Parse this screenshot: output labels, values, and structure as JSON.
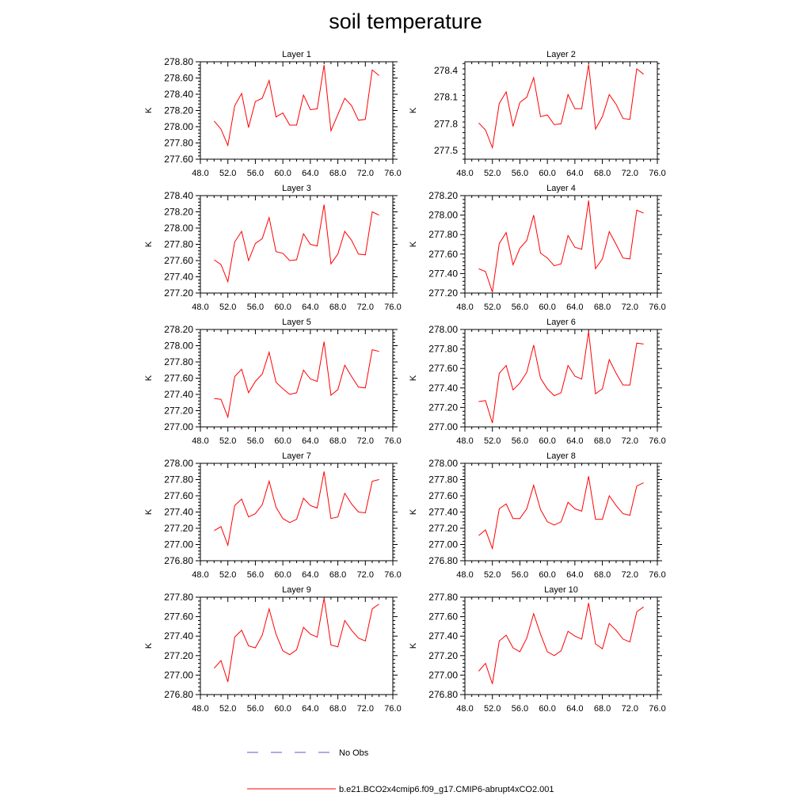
{
  "title": "soil temperature",
  "colors": {
    "model_line": "#ff0000",
    "obs_line": "#5a5ad2",
    "axis": "#000000"
  },
  "legend": [
    {
      "label": "No Obs",
      "style": "dashed",
      "color": "#5a5ad2"
    },
    {
      "label": "b.e21.BCO2x4cmip6.f09_g17.CMIP6-abrupt4xCO2.001",
      "style": "solid",
      "color": "#ff0000"
    }
  ],
  "chart_data": [
    {
      "type": "line",
      "title": "Layer 1",
      "xlabel": "",
      "ylabel": "K",
      "xlim": [
        48,
        76
      ],
      "ylim": [
        277.6,
        278.8
      ],
      "xticks": [
        "48.0",
        "52.0",
        "56.0",
        "60.0",
        "64.0",
        "68.0",
        "72.0",
        "76.0"
      ],
      "yticks": [
        "277.60",
        "277.80",
        "278.00",
        "278.20",
        "278.40",
        "278.60",
        "278.80"
      ],
      "x": [
        50,
        51,
        52,
        53,
        54,
        55,
        56,
        57,
        58,
        59,
        60,
        61,
        62,
        63,
        64,
        65,
        66,
        67,
        68,
        69,
        70,
        71,
        72,
        73,
        74
      ],
      "series": [
        {
          "name": "b.e21.BCO2x4cmip6.f09_g17.CMIP6-abrupt4xCO2.001",
          "values": [
            278.07,
            277.97,
            277.77,
            278.26,
            278.41,
            277.99,
            278.31,
            278.35,
            278.57,
            278.12,
            278.17,
            278.02,
            278.02,
            278.39,
            278.21,
            278.22,
            278.76,
            277.95,
            278.15,
            278.35,
            278.26,
            278.08,
            278.09,
            278.7,
            278.63
          ]
        }
      ]
    },
    {
      "type": "line",
      "title": "Layer 2",
      "xlabel": "",
      "ylabel": "K",
      "xlim": [
        48,
        76
      ],
      "ylim": [
        277.4,
        278.5
      ],
      "xticks": [
        "48.0",
        "52.0",
        "56.0",
        "60.0",
        "64.0",
        "68.0",
        "72.0",
        "76.0"
      ],
      "yticks": [
        "277.5",
        "277.8",
        "278.1",
        "278.4"
      ],
      "x": [
        50,
        51,
        52,
        53,
        54,
        55,
        56,
        57,
        58,
        59,
        60,
        61,
        62,
        63,
        64,
        65,
        66,
        67,
        68,
        69,
        70,
        71,
        72,
        73,
        74
      ],
      "series": [
        {
          "name": "b.e21.BCO2x4cmip6.f09_g17.CMIP6-abrupt4xCO2.001",
          "values": [
            277.81,
            277.73,
            277.53,
            278.03,
            278.16,
            277.77,
            278.04,
            278.1,
            278.32,
            277.88,
            277.9,
            277.79,
            277.8,
            278.13,
            277.97,
            277.97,
            278.47,
            277.74,
            277.88,
            278.13,
            278.02,
            277.86,
            277.85,
            278.42,
            278.36
          ]
        }
      ]
    },
    {
      "type": "line",
      "title": "Layer 3",
      "xlabel": "",
      "ylabel": "K",
      "xlim": [
        48,
        76
      ],
      "ylim": [
        277.2,
        278.4
      ],
      "xticks": [
        "48.0",
        "52.0",
        "56.0",
        "60.0",
        "64.0",
        "68.0",
        "72.0",
        "76.0"
      ],
      "yticks": [
        "277.20",
        "277.40",
        "277.60",
        "277.80",
        "278.00",
        "278.20",
        "278.40"
      ],
      "x": [
        50,
        51,
        52,
        53,
        54,
        55,
        56,
        57,
        58,
        59,
        60,
        61,
        62,
        63,
        64,
        65,
        66,
        67,
        68,
        69,
        70,
        71,
        72,
        73,
        74
      ],
      "series": [
        {
          "name": "b.e21.BCO2x4cmip6.f09_g17.CMIP6-abrupt4xCO2.001",
          "values": [
            277.61,
            277.55,
            277.34,
            277.83,
            277.96,
            277.6,
            277.81,
            277.87,
            278.13,
            277.71,
            277.69,
            277.6,
            277.61,
            277.93,
            277.8,
            277.78,
            278.29,
            277.56,
            277.68,
            277.96,
            277.85,
            277.68,
            277.67,
            278.2,
            278.16
          ]
        }
      ]
    },
    {
      "type": "line",
      "title": "Layer 4",
      "xlabel": "",
      "ylabel": "K",
      "xlim": [
        48,
        76
      ],
      "ylim": [
        277.2,
        278.2
      ],
      "xticks": [
        "48.0",
        "52.0",
        "56.0",
        "60.0",
        "64.0",
        "68.0",
        "72.0",
        "76.0"
      ],
      "yticks": [
        "277.20",
        "277.40",
        "277.60",
        "277.80",
        "278.00",
        "278.20"
      ],
      "x": [
        50,
        51,
        52,
        53,
        54,
        55,
        56,
        57,
        58,
        59,
        60,
        61,
        62,
        63,
        64,
        65,
        66,
        67,
        68,
        69,
        70,
        71,
        72,
        73,
        74
      ],
      "series": [
        {
          "name": "b.e21.BCO2x4cmip6.f09_g17.CMIP6-abrupt4xCO2.001",
          "values": [
            277.45,
            277.42,
            277.21,
            277.71,
            277.82,
            277.49,
            277.66,
            277.74,
            278.0,
            277.61,
            277.56,
            277.48,
            277.5,
            277.79,
            277.67,
            277.65,
            278.15,
            277.45,
            277.55,
            277.83,
            277.7,
            277.56,
            277.55,
            278.05,
            278.02
          ]
        }
      ]
    },
    {
      "type": "line",
      "title": "Layer 5",
      "xlabel": "",
      "ylabel": "K",
      "xlim": [
        48,
        76
      ],
      "ylim": [
        277.0,
        278.2
      ],
      "xticks": [
        "48.0",
        "52.0",
        "56.0",
        "60.0",
        "64.0",
        "68.0",
        "72.0",
        "76.0"
      ],
      "yticks": [
        "277.00",
        "277.20",
        "277.40",
        "277.60",
        "277.80",
        "278.00",
        "278.20"
      ],
      "x": [
        50,
        51,
        52,
        53,
        54,
        55,
        56,
        57,
        58,
        59,
        60,
        61,
        62,
        63,
        64,
        65,
        66,
        67,
        68,
        69,
        70,
        71,
        72,
        73,
        74
      ],
      "series": [
        {
          "name": "b.e21.BCO2x4cmip6.f09_g17.CMIP6-abrupt4xCO2.001",
          "values": [
            277.35,
            277.34,
            277.12,
            277.62,
            277.71,
            277.42,
            277.56,
            277.65,
            277.92,
            277.55,
            277.47,
            277.4,
            277.42,
            277.7,
            277.59,
            277.56,
            278.05,
            277.39,
            277.46,
            277.76,
            277.62,
            277.49,
            277.48,
            277.95,
            277.93
          ]
        }
      ]
    },
    {
      "type": "line",
      "title": "Layer 6",
      "xlabel": "",
      "ylabel": "K",
      "xlim": [
        48,
        76
      ],
      "ylim": [
        277.0,
        278.0
      ],
      "xticks": [
        "48.0",
        "52.0",
        "56.0",
        "60.0",
        "64.0",
        "68.0",
        "72.0",
        "76.0"
      ],
      "yticks": [
        "277.00",
        "277.20",
        "277.40",
        "277.60",
        "277.80",
        "278.00"
      ],
      "x": [
        50,
        51,
        52,
        53,
        54,
        55,
        56,
        57,
        58,
        59,
        60,
        61,
        62,
        63,
        64,
        65,
        66,
        67,
        68,
        69,
        70,
        71,
        72,
        73,
        74
      ],
      "series": [
        {
          "name": "b.e21.BCO2x4cmip6.f09_g17.CMIP6-abrupt4xCO2.001",
          "values": [
            277.26,
            277.27,
            277.04,
            277.55,
            277.63,
            277.38,
            277.45,
            277.56,
            277.84,
            277.5,
            277.39,
            277.32,
            277.35,
            277.63,
            277.52,
            277.49,
            277.98,
            277.34,
            277.39,
            277.69,
            277.55,
            277.43,
            277.43,
            277.86,
            277.85
          ]
        }
      ]
    },
    {
      "type": "line",
      "title": "Layer 7",
      "xlabel": "",
      "ylabel": "K",
      "xlim": [
        48,
        76
      ],
      "ylim": [
        276.8,
        278.0
      ],
      "xticks": [
        "48.0",
        "52.0",
        "56.0",
        "60.0",
        "64.0",
        "68.0",
        "72.0",
        "76.0"
      ],
      "yticks": [
        "276.80",
        "277.00",
        "277.20",
        "277.40",
        "277.60",
        "277.80",
        "278.00"
      ],
      "x": [
        50,
        51,
        52,
        53,
        54,
        55,
        56,
        57,
        58,
        59,
        60,
        61,
        62,
        63,
        64,
        65,
        66,
        67,
        68,
        69,
        70,
        71,
        72,
        73,
        74
      ],
      "series": [
        {
          "name": "b.e21.BCO2x4cmip6.f09_g17.CMIP6-abrupt4xCO2.001",
          "values": [
            277.17,
            277.22,
            276.99,
            277.48,
            277.56,
            277.34,
            277.38,
            277.49,
            277.78,
            277.46,
            277.32,
            277.27,
            277.31,
            277.57,
            277.48,
            277.45,
            277.9,
            277.32,
            277.34,
            277.63,
            277.5,
            277.4,
            277.39,
            277.78,
            277.8
          ]
        }
      ]
    },
    {
      "type": "line",
      "title": "Layer 8",
      "xlabel": "",
      "ylabel": "K",
      "xlim": [
        48,
        76
      ],
      "ylim": [
        276.8,
        278.0
      ],
      "xticks": [
        "48.0",
        "52.0",
        "56.0",
        "60.0",
        "64.0",
        "68.0",
        "72.0",
        "76.0"
      ],
      "yticks": [
        "276.80",
        "277.00",
        "277.20",
        "277.40",
        "277.60",
        "277.80",
        "278.00"
      ],
      "x": [
        50,
        51,
        52,
        53,
        54,
        55,
        56,
        57,
        58,
        59,
        60,
        61,
        62,
        63,
        64,
        65,
        66,
        67,
        68,
        69,
        70,
        71,
        72,
        73,
        74
      ],
      "series": [
        {
          "name": "b.e21.BCO2x4cmip6.f09_g17.CMIP6-abrupt4xCO2.001",
          "values": [
            277.11,
            277.18,
            276.95,
            277.44,
            277.5,
            277.32,
            277.32,
            277.44,
            277.73,
            277.43,
            277.28,
            277.24,
            277.28,
            277.52,
            277.44,
            277.41,
            277.84,
            277.31,
            277.31,
            277.6,
            277.48,
            277.38,
            277.36,
            277.72,
            277.76
          ]
        }
      ]
    },
    {
      "type": "line",
      "title": "Layer 9",
      "xlabel": "",
      "ylabel": "K",
      "xlim": [
        48,
        76
      ],
      "ylim": [
        276.8,
        277.8
      ],
      "xticks": [
        "48.0",
        "52.0",
        "56.0",
        "60.0",
        "64.0",
        "68.0",
        "72.0",
        "76.0"
      ],
      "yticks": [
        "276.80",
        "277.00",
        "277.20",
        "277.40",
        "277.60",
        "277.80"
      ],
      "x": [
        50,
        51,
        52,
        53,
        54,
        55,
        56,
        57,
        58,
        59,
        60,
        61,
        62,
        63,
        64,
        65,
        66,
        67,
        68,
        69,
        70,
        71,
        72,
        73,
        74
      ],
      "series": [
        {
          "name": "b.e21.BCO2x4cmip6.f09_g17.CMIP6-abrupt4xCO2.001",
          "values": [
            277.07,
            277.15,
            276.93,
            277.39,
            277.46,
            277.3,
            277.28,
            277.41,
            277.68,
            277.42,
            277.25,
            277.21,
            277.26,
            277.49,
            277.42,
            277.39,
            277.79,
            277.31,
            277.29,
            277.56,
            277.46,
            277.38,
            277.35,
            277.68,
            277.73
          ]
        }
      ]
    },
    {
      "type": "line",
      "title": "Layer 10",
      "xlabel": "",
      "ylabel": "K",
      "xlim": [
        48,
        76
      ],
      "ylim": [
        276.8,
        277.8
      ],
      "xticks": [
        "48.0",
        "52.0",
        "56.0",
        "60.0",
        "64.0",
        "68.0",
        "72.0",
        "76.0"
      ],
      "yticks": [
        "276.80",
        "277.00",
        "277.20",
        "277.40",
        "277.60",
        "277.80"
      ],
      "x": [
        50,
        51,
        52,
        53,
        54,
        55,
        56,
        57,
        58,
        59,
        60,
        61,
        62,
        63,
        64,
        65,
        66,
        67,
        68,
        69,
        70,
        71,
        72,
        73,
        74
      ],
      "series": [
        {
          "name": "b.e21.BCO2x4cmip6.f09_g17.CMIP6-abrupt4xCO2.001",
          "values": [
            277.04,
            277.12,
            276.91,
            277.35,
            277.41,
            277.28,
            277.24,
            277.38,
            277.63,
            277.42,
            277.24,
            277.2,
            277.25,
            277.45,
            277.4,
            277.37,
            277.74,
            277.32,
            277.27,
            277.53,
            277.46,
            277.37,
            277.34,
            277.65,
            277.7
          ]
        }
      ]
    }
  ]
}
